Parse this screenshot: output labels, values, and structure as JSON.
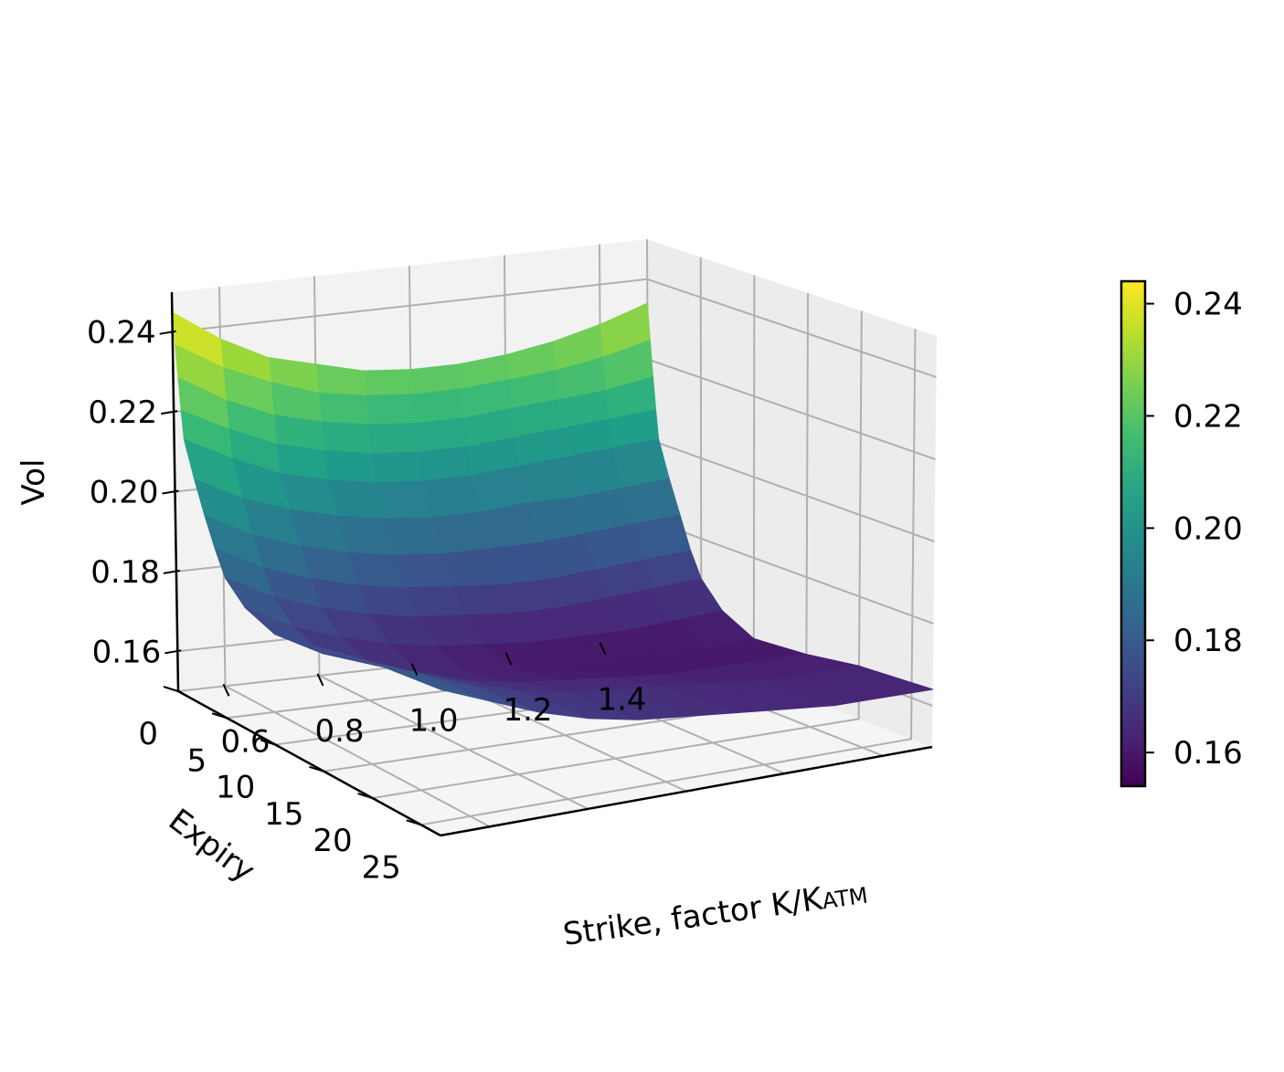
{
  "chart_data": {
    "type": "surface",
    "title": "",
    "xlabel": "Strike, factor K/K",
    "xlabel_sub": "ATM",
    "ylabel": "Expiry",
    "zlabel": "Vol",
    "xlim": [
      0.5,
      1.5
    ],
    "ylim": [
      0,
      27
    ],
    "zlim": [
      0.15,
      0.25
    ],
    "x_ticks": [
      0.6,
      0.8,
      1.0,
      1.2,
      1.4
    ],
    "x_tick_labels": [
      "0.6",
      "0.8",
      "1.0",
      "1.2",
      "1.4"
    ],
    "y_ticks": [
      0,
      5,
      10,
      15,
      20,
      25
    ],
    "y_tick_labels": [
      "0",
      "5",
      "10",
      "15",
      "20",
      "25"
    ],
    "z_ticks": [
      0.16,
      0.18,
      0.2,
      0.22,
      0.24
    ],
    "z_tick_labels": [
      "0.16",
      "0.18",
      "0.20",
      "0.22",
      "0.24"
    ],
    "grid": true,
    "colormap": "viridis",
    "strikes": [
      0.5,
      0.6,
      0.7,
      0.8,
      0.9,
      1.0,
      1.1,
      1.2,
      1.3,
      1.4,
      1.5
    ],
    "expiries": [
      0,
      0.25,
      0.5,
      0.75,
      1,
      2,
      3,
      4,
      5,
      7,
      10,
      15,
      20,
      27
    ],
    "vol": [
      [
        0.245,
        0.237,
        0.231,
        0.228,
        0.225,
        0.224,
        0.224,
        0.225,
        0.227,
        0.23,
        0.234
      ],
      [
        0.237,
        0.23,
        0.225,
        0.221,
        0.219,
        0.218,
        0.218,
        0.219,
        0.22,
        0.222,
        0.225
      ],
      [
        0.229,
        0.222,
        0.217,
        0.214,
        0.212,
        0.211,
        0.211,
        0.212,
        0.213,
        0.214,
        0.216
      ],
      [
        0.221,
        0.215,
        0.21,
        0.207,
        0.205,
        0.204,
        0.204,
        0.205,
        0.206,
        0.207,
        0.208
      ],
      [
        0.214,
        0.208,
        0.203,
        0.2,
        0.198,
        0.197,
        0.197,
        0.198,
        0.199,
        0.2,
        0.201
      ],
      [
        0.205,
        0.199,
        0.195,
        0.192,
        0.19,
        0.189,
        0.189,
        0.19,
        0.19,
        0.191,
        0.192
      ],
      [
        0.197,
        0.191,
        0.187,
        0.184,
        0.182,
        0.181,
        0.181,
        0.181,
        0.182,
        0.183,
        0.184
      ],
      [
        0.19,
        0.184,
        0.18,
        0.177,
        0.175,
        0.174,
        0.173,
        0.173,
        0.174,
        0.175,
        0.176
      ],
      [
        0.184,
        0.178,
        0.174,
        0.171,
        0.169,
        0.168,
        0.167,
        0.167,
        0.168,
        0.169,
        0.17
      ],
      [
        0.179,
        0.173,
        0.169,
        0.166,
        0.164,
        0.163,
        0.162,
        0.162,
        0.162,
        0.163,
        0.164
      ],
      [
        0.176,
        0.17,
        0.166,
        0.163,
        0.161,
        0.16,
        0.159,
        0.159,
        0.159,
        0.159,
        0.16
      ],
      [
        0.178,
        0.173,
        0.169,
        0.166,
        0.164,
        0.163,
        0.162,
        0.161,
        0.161,
        0.161,
        0.161
      ],
      [
        0.18,
        0.176,
        0.172,
        0.169,
        0.167,
        0.166,
        0.165,
        0.164,
        0.163,
        0.163,
        0.163
      ],
      [
        0.181,
        0.177,
        0.173,
        0.17,
        0.168,
        0.167,
        0.166,
        0.165,
        0.164,
        0.164,
        0.164
      ]
    ],
    "colorbar": {
      "range": [
        0.154,
        0.244
      ],
      "ticks": [
        0.16,
        0.18,
        0.2,
        0.22,
        0.24
      ],
      "tick_labels": [
        "0.16",
        "0.18",
        "0.20",
        "0.22",
        "0.24"
      ]
    }
  }
}
